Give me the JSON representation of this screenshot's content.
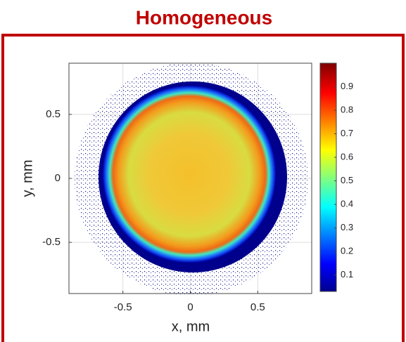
{
  "chart_data": {
    "type": "heatmap",
    "title": "Homogeneous",
    "xlabel": "x, mm",
    "ylabel": "y, mm",
    "xlim": [
      -0.9,
      0.9
    ],
    "ylim": [
      -0.9,
      0.9
    ],
    "xticks": [
      -0.5,
      0,
      0.5
    ],
    "yticks": [
      -0.5,
      0,
      0.5
    ],
    "grid": true,
    "colorbar": {
      "lim": [
        0.03,
        1.0
      ],
      "ticks": [
        0.1,
        0.2,
        0.3,
        0.4,
        0.5,
        0.6,
        0.7,
        0.8,
        0.9
      ],
      "colormap": "jet"
    }
  }
}
